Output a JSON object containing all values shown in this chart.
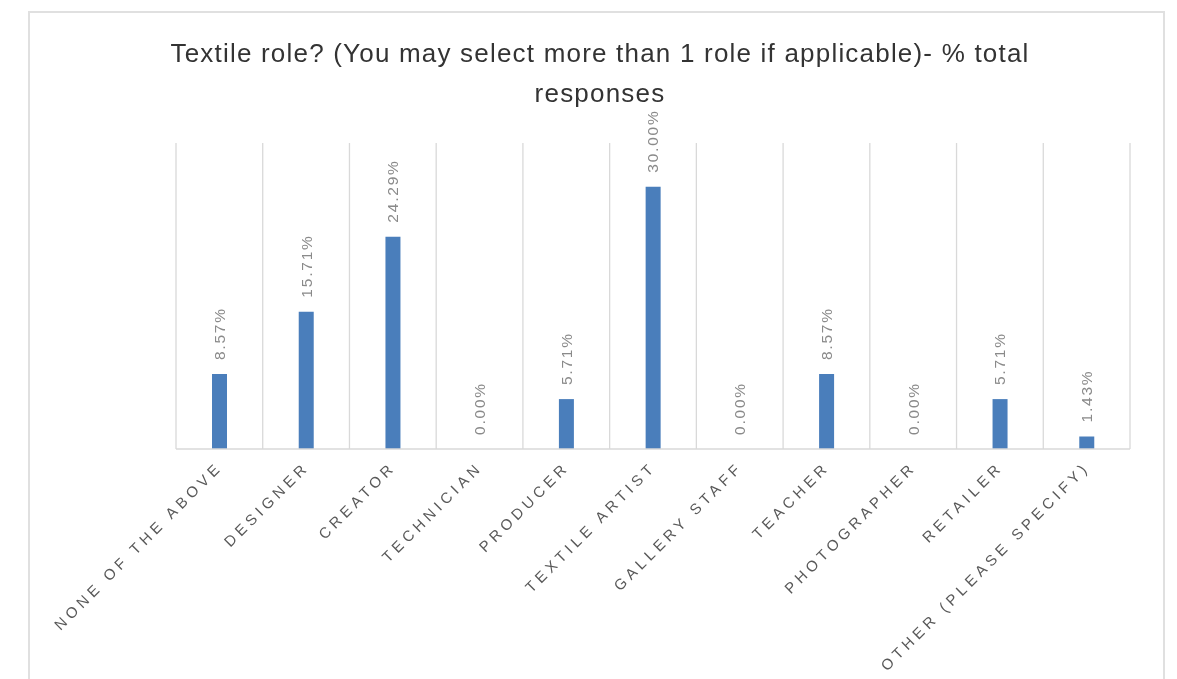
{
  "chart_data": {
    "type": "bar",
    "title": "Textile role? (You may select more than 1 role if applicable)- % total responses",
    "categories": [
      "NONE OF THE ABOVE",
      "DESIGNER",
      "CREATOR",
      "TECHNICIAN",
      "PRODUCER",
      "TEXTILE ARTIST",
      "GALLERY STAFF",
      "TEACHER",
      "PHOTOGRAPHER",
      "RETAILER",
      "OTHER (PLEASE SPECIFY)"
    ],
    "values": [
      8.57,
      15.71,
      24.29,
      0,
      5.71,
      30,
      0,
      8.57,
      0,
      5.71,
      1.43
    ],
    "value_labels": [
      "8.57%",
      "15.71%",
      "24.29%",
      "0.00%",
      "5.71%",
      "30.00%",
      "0.00%",
      "8.57%",
      "0.00%",
      "5.71%",
      "1.43%"
    ],
    "color": "#4a7ebb",
    "grid": "x",
    "tick_labels": "x"
  }
}
